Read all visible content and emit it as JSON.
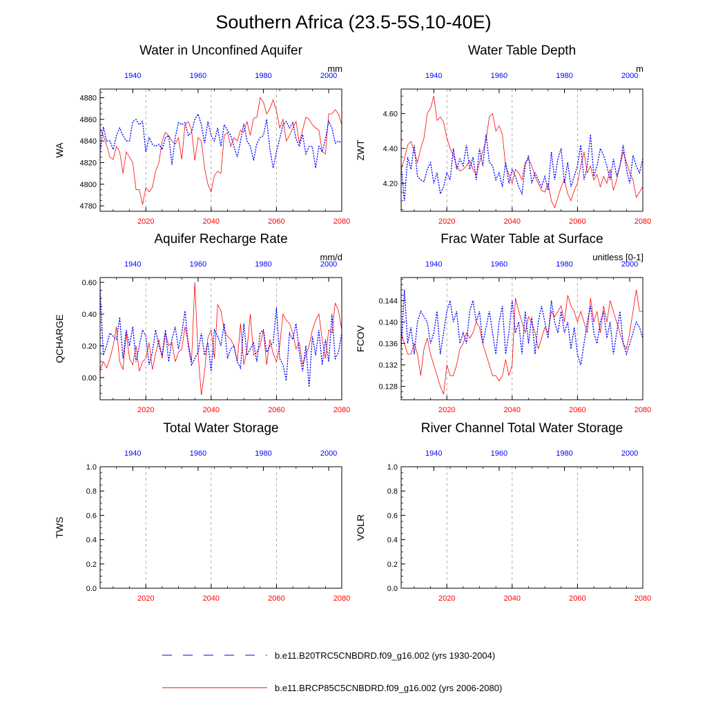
{
  "figure": {
    "title": "Southern Africa (23.5-5S,10-40E)",
    "top_axis_color": "#0000ff",
    "bottom_axis_color": "#ff0000"
  },
  "legend": {
    "items": [
      {
        "label": "b.e11.B20TRC5CNBDRD.f09_g16.002 (yrs 1930-2004)",
        "color": "#0000ff",
        "dash": "dashed"
      },
      {
        "label": "b.e11.BRCP85C5CNBDRD.f09_g16.002 (yrs 2006-2080)",
        "color": "#ff0000",
        "dash": "solid"
      }
    ]
  },
  "chart_data": [
    {
      "type": "line",
      "title": "Water in Unconfined Aquifer",
      "ylabel": "WA",
      "units": "mm",
      "x_bottom": {
        "range": [
          2006,
          2080
        ],
        "ticks": [
          "2020",
          "2040",
          "2060",
          "2080"
        ]
      },
      "x_top": {
        "range": [
          1930,
          2004
        ],
        "ticks": [
          "1940",
          "1960",
          "1980",
          "2000"
        ]
      },
      "ylim": [
        4775,
        4888
      ],
      "yticks": [
        "4780",
        "4800",
        "4820",
        "4840",
        "4860",
        "4880"
      ],
      "grid": "vertical dashed at bottom-axis major ticks",
      "series": [
        {
          "color": "#ff0000",
          "style": "solid",
          "values": [
            4851,
            4845,
            4836,
            4825,
            4823,
            4835,
            4830,
            4810,
            4830,
            4825,
            4820,
            4795,
            4795,
            4781,
            4797,
            4793,
            4797,
            4812,
            4820,
            4840,
            4848,
            4845,
            4840,
            4837,
            4843,
            4823,
            4855,
            4858,
            4850,
            4822,
            4843,
            4840,
            4815,
            4800,
            4793,
            4808,
            4812,
            4810,
            4845,
            4848,
            4835,
            4843,
            4840,
            4850,
            4848,
            4858,
            4845,
            4861,
            4862,
            4880,
            4876,
            4865,
            4870,
            4878,
            4868,
            4852,
            4860,
            4840,
            4845,
            4852,
            4858,
            4838,
            4850,
            4862,
            4860,
            4855,
            4852,
            4850,
            4830,
            4828,
            4865,
            4865,
            4869,
            4865,
            4855
          ]
        },
        {
          "color": "#0000ff",
          "style": "dashed",
          "values": [
            4830,
            4853,
            4840,
            4840,
            4832,
            4845,
            4852,
            4845,
            4840,
            4840,
            4858,
            4860,
            4855,
            4858,
            4830,
            4843,
            4837,
            4835,
            4837,
            4832,
            4843,
            4845,
            4818,
            4843,
            4857,
            4855,
            4857,
            4845,
            4848,
            4860,
            4865,
            4855,
            4838,
            4858,
            4845,
            4840,
            4852,
            4835,
            4855,
            4850,
            4845,
            4835,
            4825,
            4840,
            4856,
            4840,
            4835,
            4822,
            4838,
            4843,
            4845,
            4860,
            4832,
            4815,
            4830,
            4842,
            4855,
            4858,
            4852,
            4857,
            4842,
            4835,
            4846,
            4828,
            4835,
            4835,
            4815,
            4835,
            4830,
            4842,
            4858,
            4852,
            4838,
            4840,
            4838
          ]
        }
      ]
    },
    {
      "type": "line",
      "title": "Water Table Depth",
      "ylabel": "ZWT",
      "units": "m",
      "x_bottom": {
        "range": [
          2006,
          2080
        ],
        "ticks": [
          "2020",
          "2040",
          "2060",
          "2080"
        ]
      },
      "x_top": {
        "range": [
          1930,
          2004
        ],
        "ticks": [
          "1940",
          "1960",
          "1980",
          "2000"
        ]
      },
      "ylim": [
        4.04,
        4.74
      ],
      "yticks": [
        "4.20",
        "4.40",
        "4.60"
      ],
      "grid": "vertical dashed at bottom-axis major ticks",
      "series": [
        {
          "color": "#ff0000",
          "style": "solid",
          "values": [
            4.28,
            4.34,
            4.42,
            4.44,
            4.38,
            4.32,
            4.4,
            4.46,
            4.6,
            4.63,
            4.7,
            4.56,
            4.58,
            4.55,
            4.46,
            4.4,
            4.36,
            4.3,
            4.27,
            4.28,
            4.3,
            4.33,
            4.28,
            4.25,
            4.32,
            4.38,
            4.45,
            4.58,
            4.6,
            4.5,
            4.53,
            4.48,
            4.3,
            4.25,
            4.2,
            4.28,
            4.26,
            4.22,
            4.32,
            4.34,
            4.3,
            4.24,
            4.2,
            4.16,
            4.15,
            4.2,
            4.1,
            4.06,
            4.12,
            4.18,
            4.22,
            4.14,
            4.1,
            4.16,
            4.2,
            4.3,
            4.38,
            4.26,
            4.3,
            4.22,
            4.25,
            4.18,
            4.24,
            4.2,
            4.28,
            4.16,
            4.22,
            4.3,
            4.38,
            4.32,
            4.26,
            4.22,
            4.12,
            4.15,
            4.18
          ]
        },
        {
          "color": "#0000ff",
          "style": "dashed",
          "values": [
            4.3,
            4.1,
            4.35,
            4.28,
            4.42,
            4.24,
            4.22,
            4.21,
            4.28,
            4.32,
            4.2,
            4.26,
            4.14,
            4.18,
            4.26,
            4.22,
            4.4,
            4.28,
            4.34,
            4.3,
            4.42,
            4.28,
            4.35,
            4.22,
            4.4,
            4.3,
            4.48,
            4.32,
            4.3,
            4.22,
            4.26,
            4.18,
            4.32,
            4.2,
            4.28,
            4.24,
            4.18,
            4.14,
            4.3,
            4.36,
            4.2,
            4.26,
            4.22,
            4.18,
            4.24,
            4.16,
            4.38,
            4.22,
            4.34,
            4.4,
            4.2,
            4.32,
            4.18,
            4.24,
            4.3,
            4.42,
            4.22,
            4.3,
            4.48,
            4.24,
            4.3,
            4.4,
            4.36,
            4.3,
            4.22,
            4.34,
            4.24,
            4.3,
            4.42,
            4.28,
            4.2,
            4.36,
            4.3,
            4.26,
            4.34
          ]
        }
      ]
    },
    {
      "type": "line",
      "title": "Aquifer Recharge Rate",
      "ylabel": "QCHARGE",
      "units": "mm/d",
      "x_bottom": {
        "range": [
          2006,
          2080
        ],
        "ticks": [
          "2020",
          "2040",
          "2060",
          "2080"
        ]
      },
      "x_top": {
        "range": [
          1930,
          2004
        ],
        "ticks": [
          "1940",
          "1960",
          "1980",
          "2000"
        ]
      },
      "ylim": [
        -0.14,
        0.63
      ],
      "yticks": [
        "0.00",
        "0.20",
        "0.40",
        "0.60"
      ],
      "grid": "vertical dashed at bottom-axis major ticks",
      "series": [
        {
          "color": "#ff0000",
          "style": "solid",
          "values": [
            0.05,
            0.1,
            0.06,
            0.12,
            0.2,
            0.32,
            0.1,
            0.05,
            0.28,
            0.12,
            0.08,
            0.2,
            0.04,
            0.1,
            0.12,
            0.22,
            0.05,
            0.15,
            0.24,
            0.12,
            0.28,
            0.2,
            0.22,
            0.1,
            0.16,
            0.18,
            0.32,
            0.22,
            0.1,
            0.6,
            0.15,
            -0.11,
            0.04,
            0.25,
            0.3,
            0.12,
            0.46,
            0.42,
            0.3,
            0.26,
            0.24,
            0.2,
            0.1,
            0.34,
            0.08,
            0.18,
            0.4,
            0.14,
            0.16,
            0.2,
            0.3,
            0.08,
            0.24,
            0.15,
            0.1,
            0.2,
            0.4,
            0.36,
            0.34,
            0.28,
            0.18,
            0.22,
            0.08,
            0.14,
            0.2,
            0.3,
            0.36,
            0.4,
            0.24,
            0.12,
            0.3,
            0.28,
            0.47,
            0.42,
            0.3
          ]
        },
        {
          "color": "#0000ff",
          "style": "dashed",
          "values": [
            0.55,
            0.14,
            0.2,
            0.28,
            0.26,
            0.24,
            0.38,
            0.12,
            0.3,
            0.2,
            0.32,
            0.1,
            0.2,
            0.3,
            0.26,
            0.08,
            0.16,
            0.3,
            0.2,
            0.14,
            0.3,
            0.1,
            0.24,
            0.32,
            0.18,
            0.28,
            0.42,
            0.2,
            0.08,
            0.12,
            0.16,
            0.28,
            0.14,
            0.22,
            0.04,
            0.3,
            0.26,
            0.2,
            0.34,
            0.12,
            0.18,
            0.2,
            0.1,
            0.06,
            0.34,
            0.14,
            0.18,
            0.22,
            0.1,
            0.28,
            0.3,
            0.16,
            0.2,
            0.22,
            0.44,
            0.12,
            0.08,
            -0.02,
            0.28,
            0.24,
            0.34,
            0.16,
            0.04,
            0.2,
            -0.06,
            0.26,
            0.14,
            0.3,
            0.08,
            0.24,
            0.1,
            0.4,
            0.12,
            0.16,
            0.28
          ]
        }
      ]
    },
    {
      "type": "line",
      "title": "Frac Water Table at Surface",
      "ylabel": "FCOV",
      "units": "unitless [0-1]",
      "x_bottom": {
        "range": [
          2006,
          2080
        ],
        "ticks": [
          "2020",
          "2040",
          "2060",
          "2080"
        ]
      },
      "x_top": {
        "range": [
          1930,
          2004
        ],
        "ticks": [
          "1940",
          "1960",
          "1980",
          "2000"
        ]
      },
      "ylim": [
        0.1255,
        0.1483
      ],
      "yticks": [
        "0.128",
        "0.132",
        "0.136",
        "0.140",
        "0.144"
      ],
      "grid": "vertical dashed at bottom-axis major ticks",
      "series": [
        {
          "color": "#ff0000",
          "style": "solid",
          "values": [
            0.138,
            0.136,
            0.134,
            0.134,
            0.136,
            0.134,
            0.13,
            0.135,
            0.137,
            0.134,
            0.132,
            0.13,
            0.128,
            0.1265,
            0.132,
            0.13,
            0.13,
            0.132,
            0.135,
            0.136,
            0.138,
            0.137,
            0.138,
            0.14,
            0.139,
            0.136,
            0.134,
            0.132,
            0.13,
            0.13,
            0.129,
            0.13,
            0.133,
            0.13,
            0.132,
            0.1445,
            0.142,
            0.14,
            0.138,
            0.141,
            0.14,
            0.138,
            0.135,
            0.137,
            0.139,
            0.138,
            0.142,
            0.141,
            0.142,
            0.143,
            0.14,
            0.145,
            0.143,
            0.142,
            0.14,
            0.142,
            0.14,
            0.138,
            0.1445,
            0.14,
            0.142,
            0.138,
            0.143,
            0.14,
            0.144,
            0.142,
            0.14,
            0.138,
            0.136,
            0.135,
            0.138,
            0.142,
            0.146,
            0.142,
            0.142
          ]
        },
        {
          "color": "#0000ff",
          "style": "dashed",
          "values": [
            0.135,
            0.146,
            0.136,
            0.139,
            0.134,
            0.14,
            0.142,
            0.141,
            0.14,
            0.136,
            0.138,
            0.142,
            0.134,
            0.138,
            0.142,
            0.144,
            0.14,
            0.142,
            0.136,
            0.138,
            0.136,
            0.142,
            0.144,
            0.14,
            0.142,
            0.136,
            0.139,
            0.142,
            0.138,
            0.134,
            0.14,
            0.143,
            0.134,
            0.138,
            0.144,
            0.138,
            0.14,
            0.134,
            0.142,
            0.136,
            0.141,
            0.134,
            0.14,
            0.143,
            0.14,
            0.137,
            0.144,
            0.14,
            0.138,
            0.142,
            0.138,
            0.14,
            0.135,
            0.139,
            0.134,
            0.132,
            0.136,
            0.14,
            0.143,
            0.138,
            0.136,
            0.14,
            0.142,
            0.137,
            0.14,
            0.134,
            0.138,
            0.142,
            0.136,
            0.134,
            0.136,
            0.138,
            0.14,
            0.139,
            0.137
          ]
        }
      ]
    },
    {
      "type": "line",
      "title": "Total Water Storage",
      "ylabel": "TWS",
      "units": "",
      "x_bottom": {
        "range": [
          2006,
          2080
        ],
        "ticks": [
          "2020",
          "2040",
          "2060",
          "2080"
        ]
      },
      "x_top": {
        "range": [
          1930,
          2004
        ],
        "ticks": [
          "1940",
          "1960",
          "1980",
          "2000"
        ]
      },
      "ylim": [
        0,
        1
      ],
      "yticks": [
        "0.0",
        "0.2",
        "0.4",
        "0.6",
        "0.8",
        "1.0"
      ],
      "grid": "vertical dashed at bottom-axis major ticks",
      "series": []
    },
    {
      "type": "line",
      "title": "River Channel Total Water Storage",
      "ylabel": "VOLR",
      "units": "",
      "x_bottom": {
        "range": [
          2006,
          2080
        ],
        "ticks": [
          "2020",
          "2040",
          "2060",
          "2080"
        ]
      },
      "x_top": {
        "range": [
          1930,
          2004
        ],
        "ticks": [
          "1940",
          "1960",
          "1980",
          "2000"
        ]
      },
      "ylim": [
        0,
        1
      ],
      "yticks": [
        "0.0",
        "0.2",
        "0.4",
        "0.6",
        "0.8",
        "1.0"
      ],
      "grid": "vertical dashed at bottom-axis major ticks",
      "series": []
    }
  ]
}
